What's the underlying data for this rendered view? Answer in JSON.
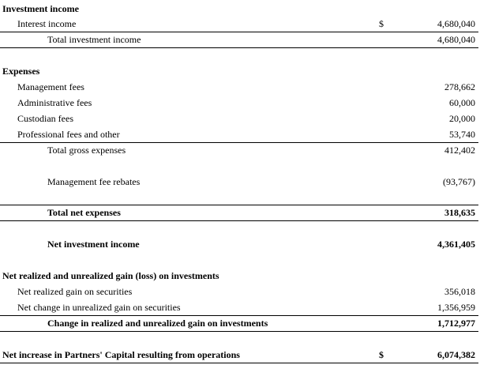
{
  "investment_income": {
    "heading": "Investment income",
    "interest_income": {
      "label": "Interest income",
      "currency": "$",
      "amount": "4,680,040"
    },
    "total": {
      "label": "Total investment income",
      "amount": "4,680,040"
    }
  },
  "expenses": {
    "heading": "Expenses",
    "items": [
      {
        "label": "Management fees",
        "amount": "278,662"
      },
      {
        "label": "Administrative fees",
        "amount": "60,000"
      },
      {
        "label": "Custodian fees",
        "amount": "20,000"
      },
      {
        "label": "Professional fees and other",
        "amount": "53,740"
      }
    ],
    "total_gross": {
      "label": "Total gross expenses",
      "amount": "412,402"
    },
    "rebates": {
      "label": "Management fee rebates",
      "amount": "(93,767)"
    },
    "total_net": {
      "label": "Total net expenses",
      "amount": "318,635"
    }
  },
  "net_investment_income": {
    "label": "Net investment income",
    "amount": "4,361,405"
  },
  "gains": {
    "heading": "Net realized and unrealized gain (loss) on investments",
    "items": [
      {
        "label": "Net realized gain on securities",
        "amount": "356,018"
      },
      {
        "label": "Net change in unrealized gain on securities",
        "amount": "1,356,959"
      }
    ],
    "total": {
      "label": "Change in realized and unrealized gain on investments",
      "amount": "1,712,977"
    }
  },
  "net_increase": {
    "label": "Net increase in Partners' Capital resulting from operations",
    "currency": "$",
    "amount": "6,074,382"
  }
}
